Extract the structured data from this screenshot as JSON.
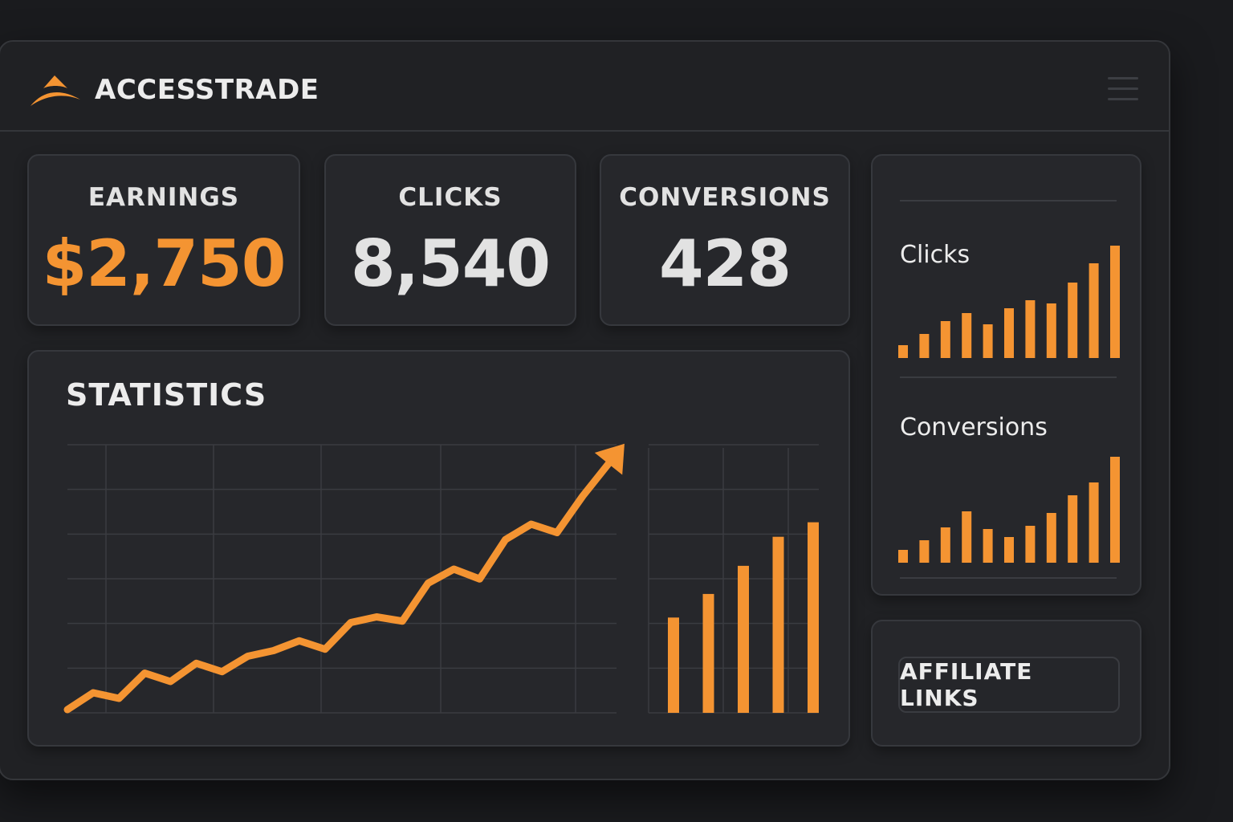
{
  "app": {
    "brand": "ACCESSTRADE",
    "accent_color": "#f49432",
    "icons": [
      "logo-icon",
      "menu-icon"
    ]
  },
  "stats": [
    {
      "label": "EARNINGS",
      "value": "$2,750",
      "accent": true
    },
    {
      "label": "CLICKS",
      "value": "8,540",
      "accent": false
    },
    {
      "label": "CONVERSIONS",
      "value": "428",
      "accent": false
    }
  ],
  "statistics": {
    "title": "STATISTICS"
  },
  "side": {
    "clicks_label": "Clicks",
    "conversions_label": "Conversions"
  },
  "affiliate": {
    "button_label": "AFFILIATE LINKS"
  },
  "chart_data": [
    {
      "type": "line",
      "title": "STATISTICS",
      "x": [
        1,
        2,
        3,
        4,
        5,
        6,
        7,
        8,
        9,
        10,
        11,
        12,
        13,
        14,
        15,
        16,
        17,
        18,
        19,
        20,
        21,
        22
      ],
      "values": [
        0,
        12,
        8,
        26,
        20,
        33,
        27,
        38,
        42,
        49,
        43,
        62,
        66,
        63,
        90,
        100,
        93,
        121,
        132,
        126,
        152,
        175
      ],
      "grid": true,
      "arrow_end": true
    },
    {
      "type": "bar",
      "values": [
        105,
        131,
        162,
        194,
        210
      ],
      "grid": true
    },
    {
      "type": "bar",
      "title": "Clicks",
      "values": [
        16,
        30,
        46,
        56,
        42,
        62,
        72,
        68,
        94,
        118,
        140
      ]
    },
    {
      "type": "bar",
      "title": "Conversions",
      "values": [
        16,
        28,
        44,
        64,
        42,
        32,
        46,
        62,
        84,
        100,
        132
      ]
    }
  ]
}
